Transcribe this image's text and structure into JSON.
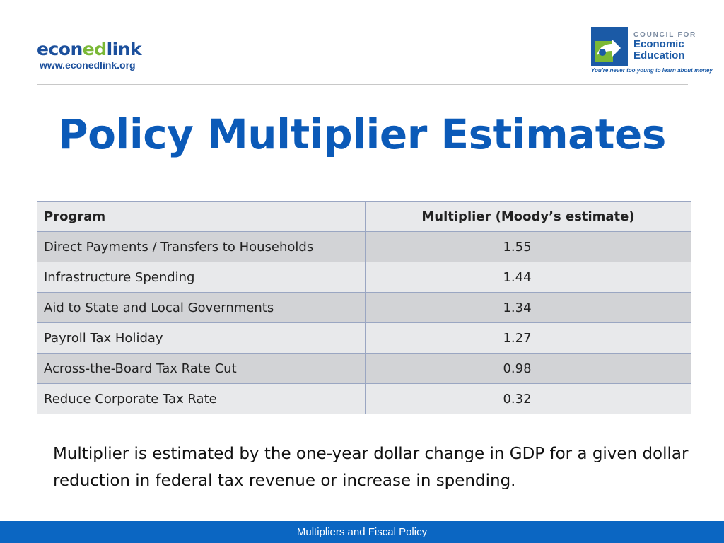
{
  "header": {
    "left_logo": {
      "brand_prefix": "econ",
      "brand_mid": "ed",
      "brand_suffix": "link",
      "url": "www.econedlink.org",
      "colors": {
        "blue": "#1b4f9c",
        "green": "#7ab836"
      }
    },
    "right_logo": {
      "line1": "COUNCIL FOR",
      "line2": "Economic",
      "line3": "Education",
      "tagline": "You're never too young to learn about money",
      "colors": {
        "blue": "#1b5aa6",
        "green": "#7ab836"
      }
    }
  },
  "slide": {
    "title": "Policy Multiplier Estimates",
    "title_color": "#0b5ab8"
  },
  "table": {
    "headers": {
      "program": "Program",
      "multiplier": "Multiplier (Moody’s estimate)"
    },
    "rows": [
      {
        "program": "Direct Payments / Transfers to Households",
        "multiplier": "1.55"
      },
      {
        "program": "Infrastructure Spending",
        "multiplier": "1.44"
      },
      {
        "program": "Aid to State and Local Governments",
        "multiplier": "1.34"
      },
      {
        "program": "Payroll Tax Holiday",
        "multiplier": "1.27"
      },
      {
        "program": "Across-the-Board Tax Rate Cut",
        "multiplier": "0.98"
      },
      {
        "program": "Reduce Corporate Tax Rate",
        "multiplier": "0.32"
      }
    ]
  },
  "note": {
    "text": "Multiplier is estimated by the one-year dollar change in GDP for a given dollar reduction in federal tax revenue or increase in spending."
  },
  "footer": {
    "text": "Multipliers and Fiscal Policy",
    "color": "#0b66c2"
  }
}
